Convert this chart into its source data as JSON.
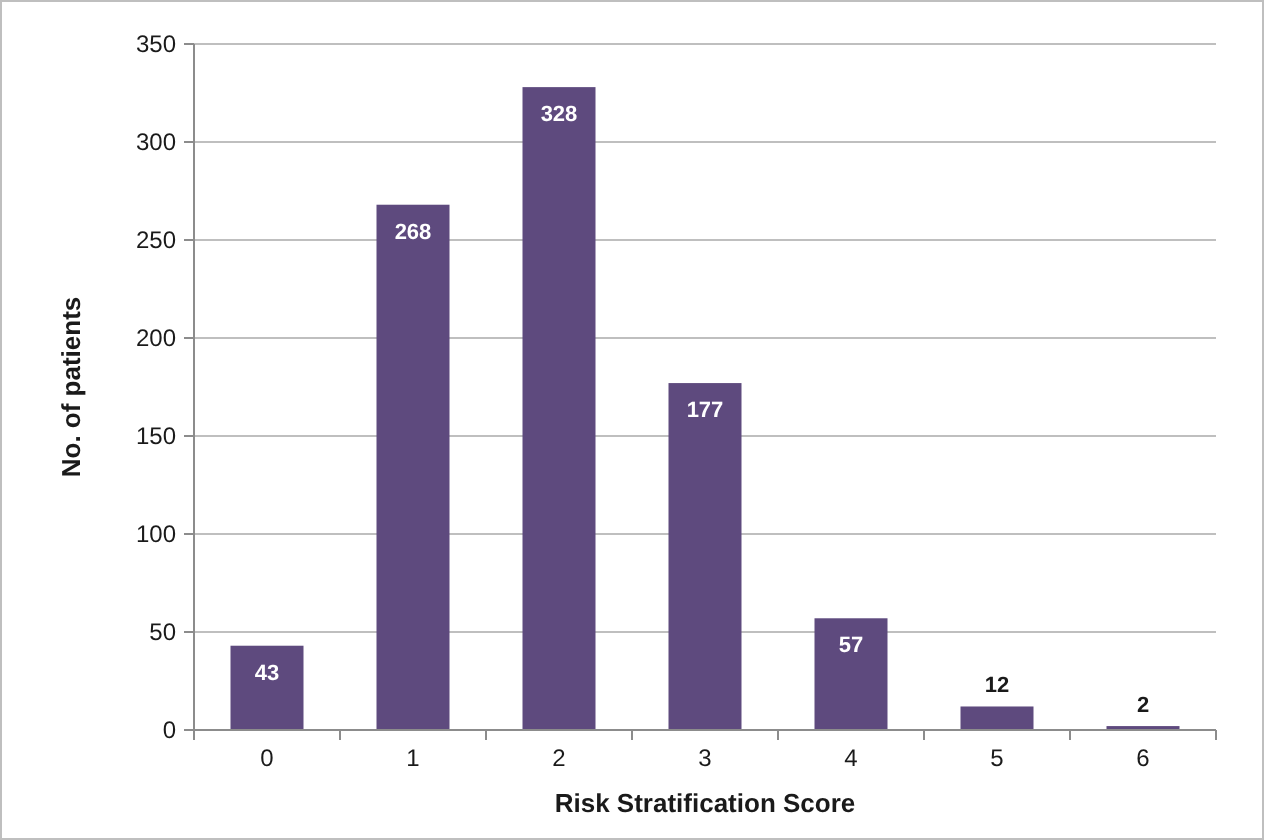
{
  "chart_data": {
    "type": "bar",
    "xlabel": "Risk Stratification Score",
    "ylabel": "No. of patients",
    "categories": [
      "0",
      "1",
      "2",
      "3",
      "4",
      "5",
      "6"
    ],
    "values": [
      43,
      268,
      328,
      177,
      57,
      12,
      2
    ],
    "color": "#5e4a7e",
    "ylim": [
      0,
      350
    ],
    "yticks": [
      0,
      50,
      100,
      150,
      200,
      250,
      300,
      350
    ],
    "grid": "y",
    "data_labels": true
  }
}
